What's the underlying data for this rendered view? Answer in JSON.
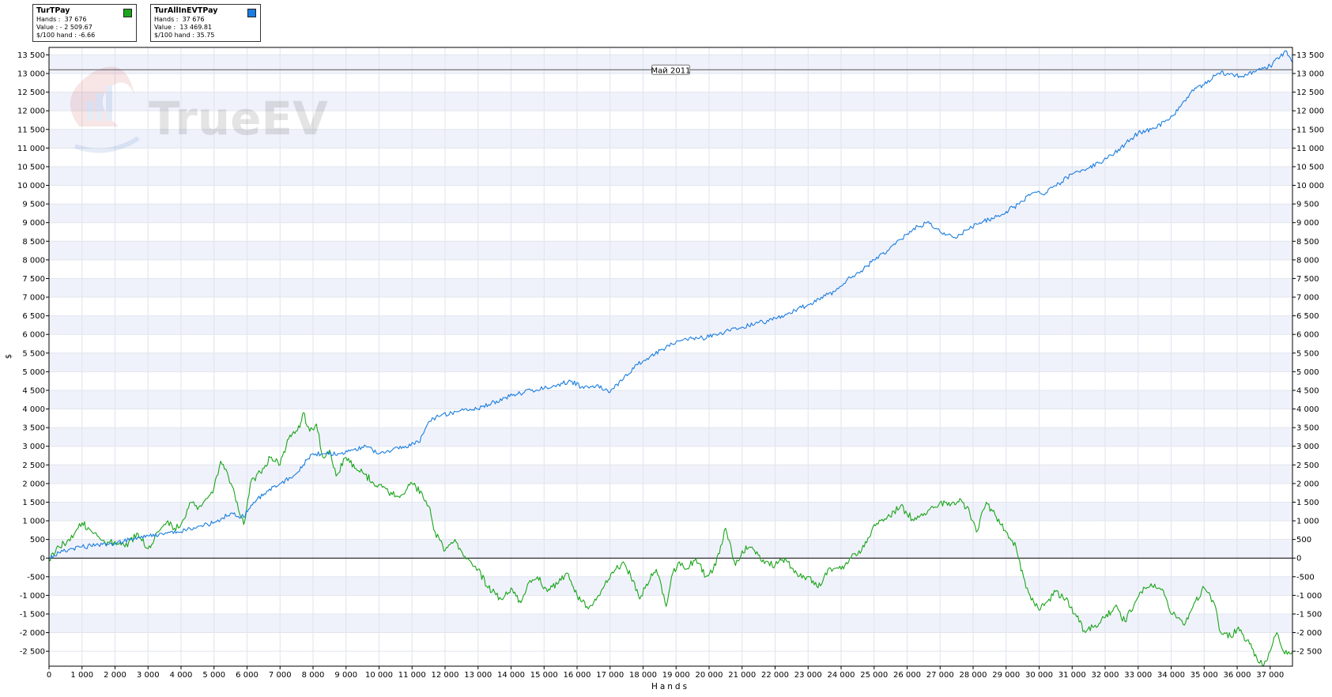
{
  "legend": [
    {
      "name": "TurTPay",
      "hands_label": "Hands :",
      "hands": "37 676",
      "value_label": "Value : -",
      "value": "2 509.67",
      "rate_label": "$/100 hand :",
      "rate": "-6.66",
      "color": "#1aa51a"
    },
    {
      "name": "TurAllInEVTPay",
      "hands_label": "Hands :",
      "hands": "37 676",
      "value_label": "Value :",
      "value": "13 469.81",
      "rate_label": "$/100 hand :",
      "rate": "35.75",
      "color": "#1a7de0"
    }
  ],
  "watermark": "TrueEV",
  "chart_data": {
    "type": "line",
    "xlabel": "Hands",
    "ylabel": "$",
    "xlim": [
      0,
      37676
    ],
    "ylim": [
      -2900,
      13700
    ],
    "x_ticks": [
      0,
      1000,
      2000,
      3000,
      4000,
      5000,
      6000,
      7000,
      8000,
      9000,
      10000,
      11000,
      12000,
      13000,
      14000,
      15000,
      16000,
      17000,
      18000,
      19000,
      20000,
      21000,
      22000,
      23000,
      24000,
      25000,
      26000,
      27000,
      28000,
      29000,
      30000,
      31000,
      32000,
      33000,
      34000,
      35000,
      36000,
      37000
    ],
    "x_tick_labels": [
      "0",
      "1 000",
      "2 000",
      "3 000",
      "4 000",
      "5 000",
      "6 000",
      "7 000",
      "8 000",
      "9 000",
      "10 000",
      "11 000",
      "12 000",
      "13 000",
      "14 000",
      "15 000",
      "16 000",
      "17 000",
      "18 000",
      "19 000",
      "20 000",
      "21 000",
      "22 000",
      "23 000",
      "24 000",
      "25 000",
      "26 000",
      "27 000",
      "28 000",
      "29 000",
      "30 000",
      "31 000",
      "32 000",
      "33 000",
      "34 000",
      "35 000",
      "36 000",
      "37 000"
    ],
    "y_ticks": [
      -2500,
      -2000,
      -1500,
      -1000,
      -500,
      0,
      500,
      1000,
      1500,
      2000,
      2500,
      3000,
      3500,
      4000,
      4500,
      5000,
      5500,
      6000,
      6500,
      7000,
      7500,
      8000,
      8500,
      9000,
      9500,
      10000,
      10500,
      11000,
      11500,
      12000,
      12500,
      13000,
      13500
    ],
    "y_tick_labels": [
      "-2 500",
      "-2 000",
      "-1 500",
      "-1 000",
      "-500",
      "0",
      "500",
      "1 000",
      "1 500",
      "2 000",
      "2 500",
      "3 000",
      "3 500",
      "4 000",
      "4 500",
      "5 000",
      "5 500",
      "6 000",
      "6 500",
      "7 000",
      "7 500",
      "8 000",
      "8 500",
      "9 000",
      "9 500",
      "10 000",
      "10 500",
      "11 000",
      "11 500",
      "12 000",
      "12 500",
      "13 000",
      "13 500"
    ],
    "reference_line": {
      "y": 13100,
      "label": "Май 2011"
    },
    "grid": true,
    "series": [
      {
        "name": "TurTPay",
        "color": "#1aa51a",
        "x": [
          0,
          300,
          600,
          1000,
          1300,
          1700,
          2000,
          2300,
          2700,
          3000,
          3300,
          3600,
          3800,
          4000,
          4300,
          4500,
          4800,
          5000,
          5200,
          5400,
          5700,
          5900,
          6100,
          6400,
          6700,
          7000,
          7300,
          7600,
          7700,
          7900,
          8100,
          8300,
          8500,
          8700,
          9000,
          9300,
          9500,
          9800,
          10100,
          10400,
          10700,
          11000,
          11300,
          11500,
          11700,
          12000,
          12300,
          12600,
          13000,
          13300,
          13700,
          14000,
          14300,
          14500,
          14800,
          15100,
          15400,
          15700,
          16000,
          16300,
          16500,
          16800,
          17100,
          17400,
          17700,
          17900,
          18100,
          18400,
          18700,
          18900,
          19100,
          19300,
          19600,
          19900,
          20200,
          20500,
          20800,
          21000,
          21300,
          21600,
          22000,
          22300,
          22700,
          23000,
          23300,
          23600,
          24000,
          24300,
          24700,
          25000,
          25400,
          25800,
          26200,
          26600,
          27000,
          27300,
          27600,
          27900,
          28100,
          28400,
          28700,
          29000,
          29300,
          29600,
          30000,
          30300,
          30500,
          30800,
          31100,
          31400,
          31700,
          32000,
          32300,
          32600,
          32900,
          33200,
          33500,
          33800,
          34000,
          34200,
          34400,
          34700,
          35000,
          35300,
          35500,
          35800,
          36000,
          36300,
          36600,
          36800,
          37000,
          37200,
          37400,
          37676
        ],
        "y": [
          -50,
          300,
          500,
          950,
          700,
          400,
          450,
          300,
          650,
          250,
          700,
          1000,
          800,
          900,
          1500,
          1300,
          1600,
          1900,
          2600,
          2300,
          1500,
          900,
          2000,
          2300,
          2700,
          2500,
          3300,
          3500,
          3900,
          3400,
          3600,
          2700,
          2900,
          2200,
          2700,
          2400,
          2300,
          2050,
          1900,
          1700,
          1700,
          2000,
          1750,
          1400,
          700,
          200,
          500,
          50,
          -300,
          -800,
          -1100,
          -800,
          -1200,
          -700,
          -500,
          -900,
          -700,
          -400,
          -1000,
          -1300,
          -1200,
          -800,
          -400,
          -100,
          -600,
          -1100,
          -700,
          -300,
          -1300,
          -400,
          -100,
          -300,
          0,
          -500,
          -200,
          800,
          -200,
          200,
          300,
          -100,
          -200,
          0,
          -500,
          -500,
          -800,
          -300,
          -300,
          0,
          300,
          900,
          1100,
          1400,
          1000,
          1200,
          1500,
          1400,
          1600,
          1200,
          700,
          1500,
          1100,
          700,
          300,
          -800,
          -1400,
          -1100,
          -900,
          -1100,
          -1500,
          -2000,
          -1800,
          -1600,
          -1300,
          -1700,
          -1200,
          -800,
          -700,
          -1000,
          -1500,
          -1600,
          -1800,
          -1200,
          -800,
          -1200,
          -2000,
          -2100,
          -1900,
          -2200,
          -2700,
          -2900,
          -2500,
          -2000,
          -2500,
          -2510
        ]
      },
      {
        "name": "TurAllInEVTPay",
        "color": "#1a7de0",
        "x": [
          0,
          300,
          700,
          1000,
          1500,
          2000,
          2500,
          3000,
          3500,
          4000,
          4500,
          5000,
          5500,
          5900,
          6200,
          6600,
          7000,
          7400,
          7700,
          8000,
          8400,
          8800,
          9200,
          9600,
          10000,
          10400,
          10800,
          11200,
          11500,
          11800,
          12200,
          12600,
          13000,
          13400,
          13800,
          14200,
          14600,
          15000,
          15400,
          15800,
          16200,
          16600,
          17000,
          17400,
          17800,
          18200,
          18600,
          19000,
          19400,
          19800,
          20200,
          20600,
          21000,
          21400,
          21800,
          22200,
          22600,
          23000,
          23400,
          23800,
          24200,
          24600,
          25000,
          25400,
          25800,
          26200,
          26600,
          27000,
          27400,
          27800,
          28200,
          28600,
          29000,
          29400,
          29800,
          30200,
          30600,
          31000,
          31400,
          31800,
          32200,
          32600,
          33000,
          33400,
          33800,
          34200,
          34600,
          35000,
          35400,
          35800,
          36200,
          36600,
          37000,
          37300,
          37500,
          37676
        ],
        "y": [
          0,
          150,
          250,
          300,
          350,
          400,
          500,
          600,
          650,
          700,
          850,
          950,
          1200,
          1100,
          1500,
          1800,
          2000,
          2200,
          2500,
          2800,
          2800,
          2800,
          2900,
          3000,
          2800,
          2900,
          3000,
          3100,
          3650,
          3800,
          3900,
          4000,
          4000,
          4150,
          4300,
          4400,
          4500,
          4550,
          4650,
          4750,
          4550,
          4650,
          4450,
          4800,
          5200,
          5400,
          5600,
          5800,
          5900,
          5900,
          6000,
          6100,
          6200,
          6300,
          6350,
          6500,
          6650,
          6800,
          7000,
          7150,
          7500,
          7700,
          8000,
          8250,
          8550,
          8850,
          9000,
          8750,
          8600,
          8800,
          9000,
          9100,
          9300,
          9500,
          9800,
          9800,
          10050,
          10300,
          10400,
          10600,
          10800,
          11100,
          11400,
          11500,
          11700,
          12000,
          12500,
          12700,
          13000,
          13000,
          12900,
          13100,
          13200,
          13450,
          13600,
          13300
        ]
      }
    ]
  }
}
